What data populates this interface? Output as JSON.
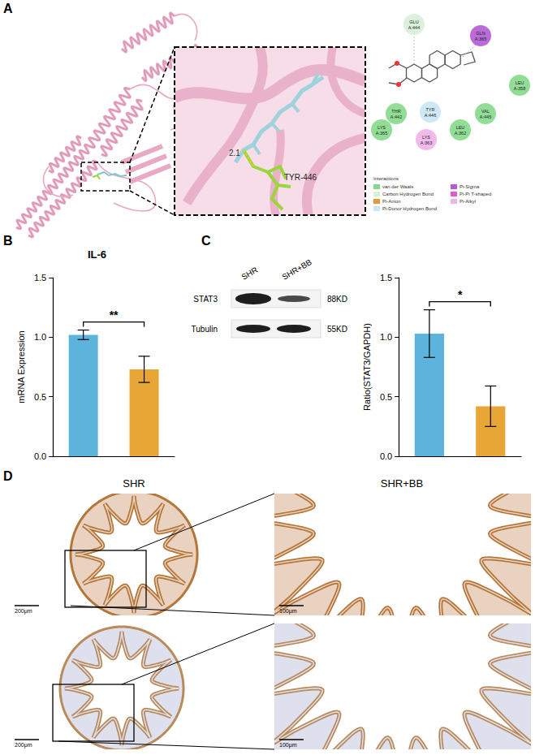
{
  "panels": [
    "A",
    "B",
    "C",
    "D"
  ],
  "docking": {
    "distance_label": "2.1",
    "residue_label": "TYR-446",
    "legend_title": "Interactions",
    "legend": [
      {
        "label": "van der Waals",
        "color": "#86d98a"
      },
      {
        "label": "Carbon Hydrogen Bond",
        "color": "#d8f0d8"
      },
      {
        "label": "Pi-Anion",
        "color": "#e59a3a"
      },
      {
        "label": "Pi-Donor Hydrogen Bond",
        "color": "#c9e6f5"
      },
      {
        "label": "Pi-Sigma",
        "color": "#b45ad6"
      },
      {
        "label": "Pi-Pi T-shaped",
        "color": "#e05bd0"
      },
      {
        "label": "Pi-Alkyl",
        "color": "#f0b3e8"
      }
    ],
    "residues": [
      {
        "label": "GLU A:444",
        "kind": "Carbon Hydrogen Bond"
      },
      {
        "label": "GLN A:365",
        "kind": "Pi-Sigma"
      },
      {
        "label": "LEU A:358",
        "kind": "van der Waals"
      },
      {
        "label": "TYR A:446",
        "kind": "Pi-Donor Hydrogen Bond"
      },
      {
        "label": "VAL A:445",
        "kind": "van der Waals"
      },
      {
        "label": "LEU A:362",
        "kind": "van der Waals"
      },
      {
        "label": "LYS A:363",
        "kind": "Pi-Alkyl"
      },
      {
        "label": "THR A:442",
        "kind": "van der Waals"
      },
      {
        "label": "LYS A:365",
        "kind": "van der Waals"
      }
    ]
  },
  "blot": {
    "lanes": [
      "SHR",
      "SHR+BB"
    ],
    "rows": [
      {
        "protein": "STAT3",
        "size": "88KD"
      },
      {
        "protein": "Tubulin",
        "size": "55KD"
      }
    ]
  },
  "ihc": {
    "columns": [
      "SHR",
      "SHR+BB"
    ],
    "scale_bars": [
      "200μm",
      "100μm"
    ]
  },
  "chart_data": [
    {
      "type": "bar",
      "title": "IL-6",
      "ylabel": "mRNA Expression",
      "categories": [
        null,
        null
      ],
      "values": [
        1.02,
        0.73
      ],
      "errors": [
        0.04,
        0.11
      ],
      "colors": [
        "#5cb3dc",
        "#e8a637"
      ],
      "ylim": [
        0,
        1.5
      ],
      "yticks": [
        {
          "value": 0,
          "label": "0.0"
        },
        {
          "value": 0.5,
          "label": "0.5"
        },
        {
          "value": 1,
          "label": "1.0"
        },
        {
          "value": 1.5,
          "label": "1.5"
        }
      ],
      "significance": "**",
      "tick_labels": "y",
      "grid": false
    },
    {
      "type": "bar",
      "ylabel": "Ratio(STAT3/GAPDH)",
      "categories": [
        null,
        null
      ],
      "values": [
        1.03,
        0.42
      ],
      "errors": [
        0.2,
        0.17
      ],
      "colors": [
        "#5cb3dc",
        "#e8a637"
      ],
      "ylim": [
        0,
        1.5
      ],
      "yticks": [
        {
          "value": 0,
          "label": "0.0"
        },
        {
          "value": 0.5,
          "label": "0.5"
        },
        {
          "value": 1,
          "label": "1.0"
        },
        {
          "value": 1.5,
          "label": "1.5"
        }
      ],
      "significance": "*",
      "tick_labels": "y",
      "grid": false
    }
  ]
}
